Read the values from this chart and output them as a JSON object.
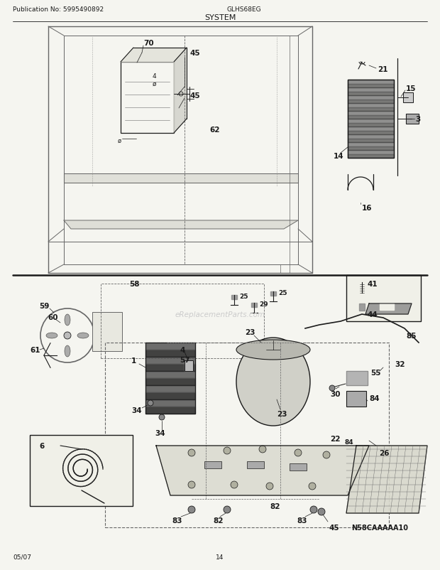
{
  "bg_color": "#f5f5f0",
  "line_color": "#666666",
  "dark_line": "#1a1a1a",
  "publication": "Publication No: 5995490892",
  "model": "GLHS68EG",
  "title": "SYSTEM",
  "date": "05/07",
  "page": "14",
  "diagram_code": "N58CAAAAA10",
  "watermark": "eReplacementParts.com",
  "header_fs": 7,
  "title_fs": 9,
  "label_fs": 7.5,
  "small_label_fs": 6.5
}
